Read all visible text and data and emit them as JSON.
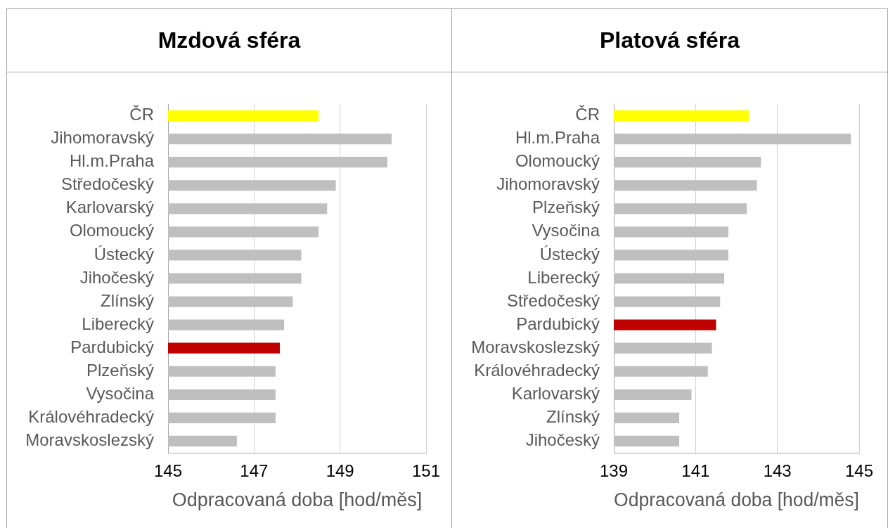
{
  "chart_data": [
    {
      "type": "bar",
      "orientation": "horizontal",
      "title": "Mzdová sféra",
      "xlabel": "Odpracovaná doba [hod/měs]",
      "categories": [
        "ČR",
        "Jihomoravský",
        "Hl.m.Praha",
        "Středočeský",
        "Karlovarský",
        "Olomoucký",
        "Ústecký",
        "Jihočeský",
        "Zlínský",
        "Liberecký",
        "Pardubický",
        "Plzeňský",
        "Vysočina",
        "Královéhradecký",
        "Moravskoslezský"
      ],
      "values": [
        148.5,
        150.2,
        150.1,
        148.9,
        148.7,
        148.5,
        148.1,
        148.1,
        147.9,
        147.7,
        147.6,
        147.5,
        147.5,
        147.5,
        146.6
      ],
      "colors": [
        "#ffff00",
        "#bfbfbf",
        "#bfbfbf",
        "#bfbfbf",
        "#bfbfbf",
        "#bfbfbf",
        "#bfbfbf",
        "#bfbfbf",
        "#bfbfbf",
        "#bfbfbf",
        "#c00000",
        "#bfbfbf",
        "#bfbfbf",
        "#bfbfbf",
        "#bfbfbf"
      ],
      "xlim": [
        145,
        151
      ],
      "xticks": [
        145,
        147,
        149,
        151
      ],
      "grid": "x"
    },
    {
      "type": "bar",
      "orientation": "horizontal",
      "title": "Platová sféra",
      "xlabel": "Odpracovaná doba [hod/měs]",
      "categories": [
        "ČR",
        "Hl.m.Praha",
        "Olomoucký",
        "Jihomoravský",
        "Plzeňský",
        "Vysočina",
        "Ústecký",
        "Liberecký",
        "Středočeský",
        "Pardubický",
        "Moravskoslezský",
        "Královéhradecký",
        "Karlovarský",
        "Zlínský",
        "Jihočeský"
      ],
      "values": [
        142.3,
        144.8,
        142.6,
        142.5,
        142.25,
        141.8,
        141.8,
        141.7,
        141.6,
        141.5,
        141.4,
        141.3,
        140.9,
        140.6,
        140.6
      ],
      "colors": [
        "#ffff00",
        "#bfbfbf",
        "#bfbfbf",
        "#bfbfbf",
        "#bfbfbf",
        "#bfbfbf",
        "#bfbfbf",
        "#bfbfbf",
        "#bfbfbf",
        "#c00000",
        "#bfbfbf",
        "#bfbfbf",
        "#bfbfbf",
        "#bfbfbf",
        "#bfbfbf"
      ],
      "xlim": [
        139,
        145
      ],
      "xticks": [
        139,
        141,
        143,
        145
      ],
      "grid": "x"
    }
  ]
}
